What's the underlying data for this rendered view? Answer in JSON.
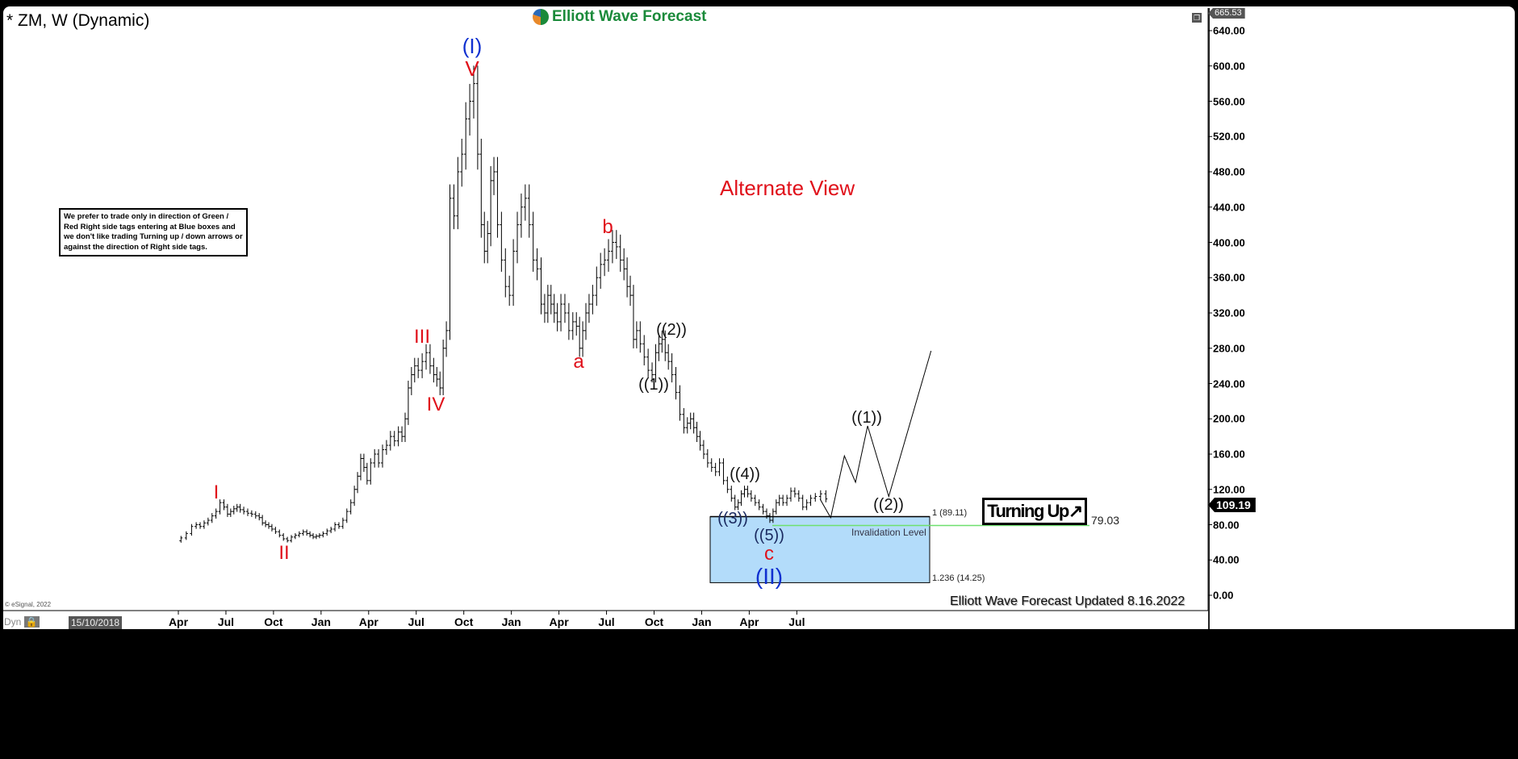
{
  "header": {
    "title": "* ZM, W (Dynamic)",
    "logo_text": "Elliott Wave Forecast"
  },
  "note": "We prefer to trade only in direction of Green / Red Right side tags entering at Blue boxes and we don't like trading Turning up / down arrows or against the direction of Right side tags.",
  "alternate_view": "Alternate View",
  "turning_label": "Turning Up",
  "turning_icon": "arrow-up-right-icon",
  "updated": "Elliott Wave Forecast Updated 8.16.2022",
  "copyright": "© eSignal, 2022",
  "dyn_label": "Dyn",
  "cursor_date": "15/10/2018",
  "colors": {
    "wave_red": "#e0101a",
    "wave_blue": "#1030d0",
    "blue_box": "#b3dcfa",
    "invalidation_line": "#6ee06e",
    "bars": "#000000"
  },
  "chart_data": {
    "type": "ohlc-bar",
    "symbol": "ZM",
    "interval": "W",
    "ylim": [
      0,
      665.53
    ],
    "y_ticks": [
      "640.00",
      "600.00",
      "560.00",
      "520.00",
      "480.00",
      "440.00",
      "400.00",
      "360.00",
      "320.00",
      "280.00",
      "240.00",
      "200.00",
      "160.00",
      "120.00",
      "80.00",
      "40.00",
      "0.00"
    ],
    "x_ticks": [
      "Apr",
      "Jul",
      "Oct",
      "Jan",
      "Apr",
      "Jul",
      "Oct",
      "Jan",
      "Apr",
      "Jul",
      "Oct",
      "Jan",
      "Apr",
      "Jul"
    ],
    "axis_top_value": "665.53",
    "last_price": "109.19",
    "weekly_close_by_month": {
      "2019-04": [
        65,
        70,
        78
      ],
      "2019-05": [
        80,
        78,
        82,
        85
      ],
      "2019-06": [
        90,
        95,
        105,
        100
      ],
      "2019-07": [
        92,
        95,
        98,
        100,
        97
      ],
      "2019-08": [
        95,
        93,
        92,
        90
      ],
      "2019-09": [
        88,
        82,
        80,
        78,
        75
      ],
      "2019-10": [
        72,
        68,
        64,
        62
      ],
      "2019-11": [
        66,
        68,
        70,
        72
      ],
      "2019-12": [
        70,
        68,
        66,
        67,
        68
      ],
      "2020-01": [
        70,
        73,
        75,
        80
      ],
      "2020-02": [
        78,
        85,
        95,
        105
      ],
      "2020-03": [
        120,
        135,
        155,
        145,
        130
      ],
      "2020-04": [
        150,
        160,
        150,
        165
      ],
      "2020-05": [
        170,
        180,
        175,
        185
      ],
      "2020-06": [
        180,
        200,
        235,
        250,
        260
      ],
      "2020-07": [
        255,
        265,
        275,
        260
      ],
      "2020-08": [
        250,
        245,
        235,
        280,
        300
      ],
      "2020-09": [
        450,
        430,
        480,
        500
      ],
      "2020-10": [
        540,
        560,
        580,
        500
      ],
      "2020-11": [
        420,
        390,
        410,
        470,
        480
      ],
      "2020-12": [
        420,
        380,
        350,
        340
      ],
      "2021-01": [
        390,
        420,
        440,
        450
      ],
      "2021-02": [
        420,
        380,
        370,
        330
      ],
      "2021-03": [
        320,
        340,
        330,
        320,
        310
      ],
      "2021-04": [
        330,
        320,
        300,
        310
      ],
      "2021-05": [
        305,
        280,
        300,
        320,
        330
      ],
      "2021-06": [
        340,
        360,
        375,
        380
      ],
      "2021-07": [
        390,
        400,
        395,
        380
      ],
      "2021-08": [
        370,
        350,
        340,
        290,
        300
      ],
      "2021-09": [
        285,
        270,
        255,
        250
      ],
      "2021-10": [
        275,
        285,
        290,
        275,
        265
      ],
      "2021-11": [
        250,
        230,
        205,
        190
      ],
      "2021-12": [
        195,
        200,
        190,
        180,
        170
      ],
      "2022-01": [
        160,
        150,
        145,
        140
      ],
      "2022-02": [
        150,
        130,
        120,
        110
      ],
      "2022-03": [
        100,
        105,
        115,
        120,
        115
      ],
      "2022-04": [
        110,
        105,
        100,
        95
      ],
      "2022-05": [
        90,
        85,
        95,
        105,
        110
      ],
      "2022-06": [
        105,
        110,
        118,
        115
      ],
      "2022-07": [
        110,
        100,
        105,
        110
      ],
      "2022-08": [
        112,
        115,
        109.19
      ]
    },
    "forecast_path": [
      {
        "date": "2022-08-15",
        "price": 109
      },
      {
        "date": "2022-09-05",
        "price": 88
      },
      {
        "date": "2022-10-01",
        "price": 158
      },
      {
        "date": "2022-10-22",
        "price": 128
      },
      {
        "date": "2022-11-15",
        "price": 192
      },
      {
        "date": "2022-12-25",
        "price": 112
      },
      {
        "date": "2023-03-15",
        "price": 277
      }
    ],
    "blue_box": {
      "from_date": "2022-03-01",
      "to_date": "2022-08-31",
      "top": 89.11,
      "bottom": 14.25,
      "top_label": "1 (89.11)",
      "bottom_label": "1.236 (14.25)"
    },
    "invalidation": {
      "value": 79.03,
      "label": "79.03",
      "text": "Invalidation Level",
      "from_date": "2022-05-10"
    },
    "wave_labels": {
      "w1": "I",
      "w2": "II",
      "w3": "III",
      "w4": "IV",
      "w5": "V",
      "big1": "(I)",
      "big2": "(II)",
      "a": "a",
      "b": "b",
      "c": "c",
      "m1": "((1))",
      "m2": "((2))",
      "m3": "((3))",
      "m4": "((4))",
      "m5": "((5))",
      "f1": "((1))",
      "f2": "((2))"
    }
  }
}
